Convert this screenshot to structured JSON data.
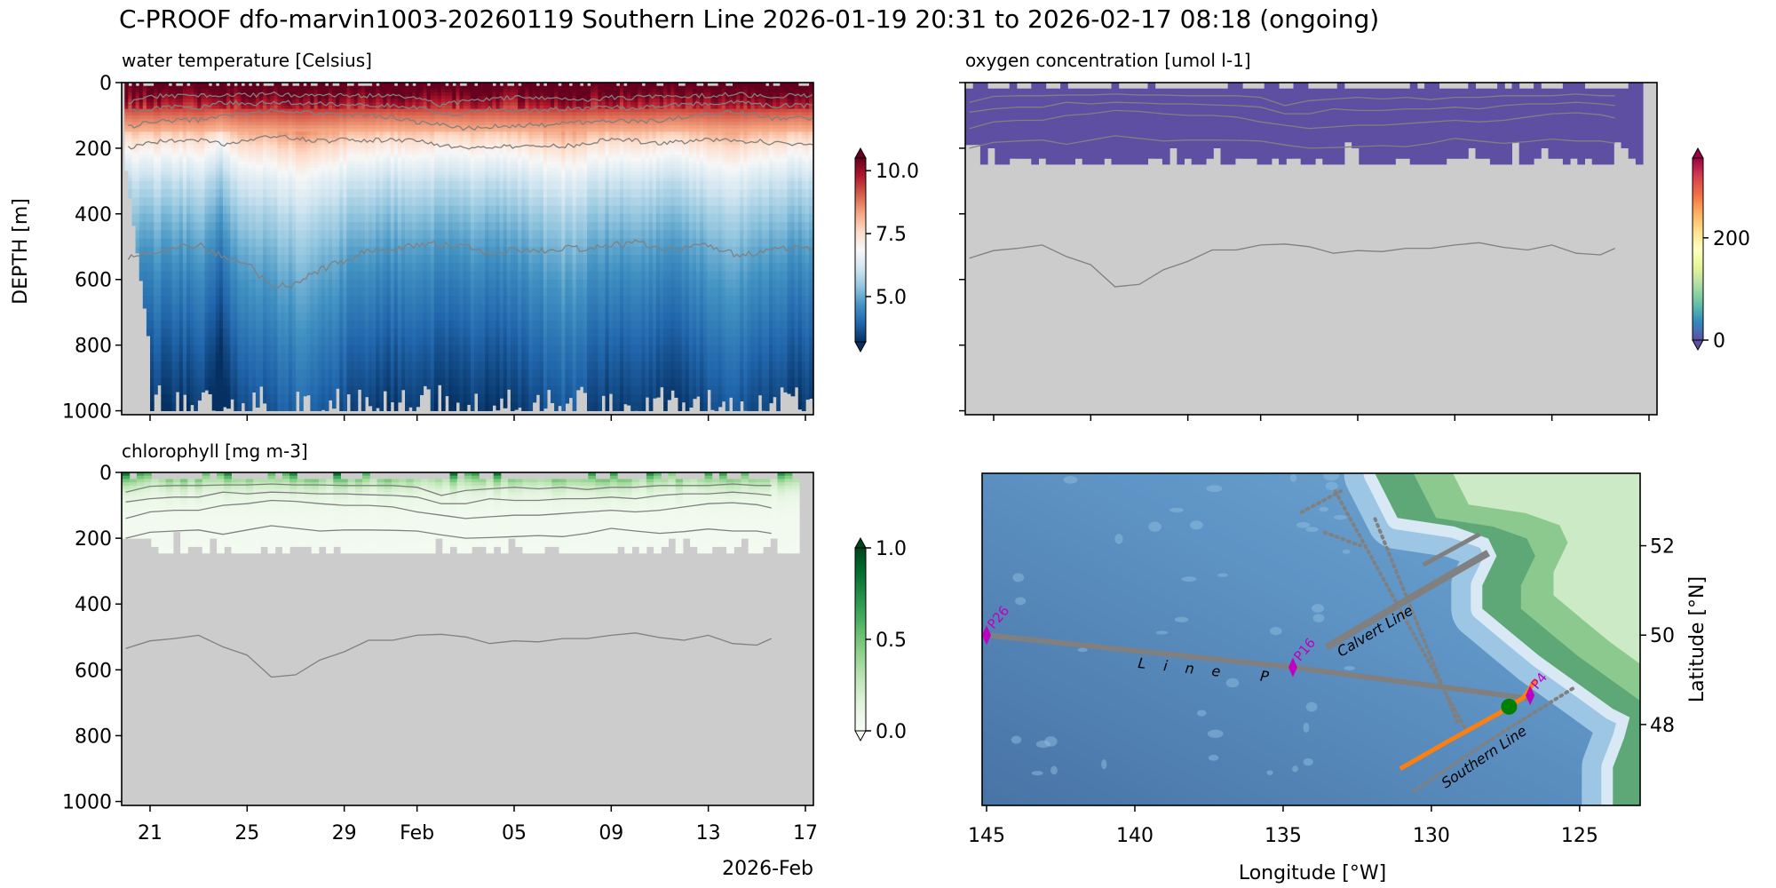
{
  "figure": {
    "title": "C-PROOF dfo-marvin1003-20260119   Southern Line   2026-01-19 20:31 to 2026-02-17 08:18 (ongoing)"
  },
  "colors": {
    "missing": "#cccccc",
    "contour": "#808080",
    "track": "#808080",
    "station": "#bf00bf",
    "glider_track": "#ff7f0e",
    "glider_position": "#008000",
    "oxygen_fill": "#5e4fa2"
  },
  "contours": {
    "day_of_jan_2026": [
      20,
      21,
      22,
      23,
      24,
      25,
      26,
      27,
      28,
      29,
      30,
      31,
      32,
      33,
      34,
      35,
      36,
      37,
      38,
      39,
      40,
      41,
      42,
      43,
      44,
      45,
      46,
      46.6
    ],
    "depth_m": [
      [
        60,
        42,
        40,
        40,
        38,
        38,
        35,
        38,
        38,
        40,
        40,
        40,
        45,
        70,
        55,
        50,
        45,
        50,
        45,
        52,
        45,
        45,
        40,
        40,
        40,
        35,
        40,
        40
      ],
      [
        90,
        80,
        75,
        75,
        60,
        65,
        60,
        62,
        65,
        65,
        68,
        70,
        75,
        95,
        95,
        80,
        85,
        85,
        80,
        80,
        75,
        80,
        70,
        65,
        65,
        60,
        65,
        70
      ],
      [
        140,
        120,
        115,
        115,
        100,
        95,
        85,
        88,
        95,
        100,
        100,
        105,
        120,
        130,
        140,
        135,
        130,
        130,
        125,
        120,
        115,
        120,
        115,
        105,
        95,
        92,
        98,
        108
      ],
      [
        200,
        182,
        178,
        175,
        188,
        175,
        162,
        170,
        178,
        175,
        175,
        176,
        178,
        190,
        200,
        198,
        195,
        192,
        195,
        185,
        170,
        178,
        185,
        180,
        172,
        178,
        178,
        185
      ],
      [
        535,
        512,
        505,
        495,
        530,
        555,
        622,
        615,
        570,
        545,
        510,
        510,
        495,
        492,
        500,
        520,
        512,
        515,
        505,
        505,
        495,
        488,
        502,
        510,
        495,
        520,
        525,
        505
      ]
    ]
  },
  "chart_data": [
    {
      "panel": "temperature",
      "type": "heatmap",
      "title": "water temperature [Celsius]",
      "ylabel": "DEPTH [m]",
      "ylim": [
        1012,
        0
      ],
      "yticks": [
        0,
        200,
        400,
        600,
        800,
        1000
      ],
      "ytick_labels": [
        "0",
        "200",
        "400",
        "600",
        "800",
        "1000"
      ],
      "xlim_day_of_jan_2026": [
        19.83,
        48.33
      ],
      "xticks": [
        21,
        25,
        29,
        32,
        36,
        40,
        44,
        48
      ],
      "mean_profile": {
        "depth": [
          0,
          30,
          60,
          100,
          150,
          200,
          250,
          300,
          400,
          500,
          600,
          800,
          1000
        ],
        "value": [
          10.8,
          10.4,
          9.8,
          9.0,
          8.2,
          7.4,
          6.8,
          6.3,
          5.6,
          5.1,
          4.7,
          4.1,
          3.6
        ]
      },
      "colorbar": {
        "cmap": "RdBu_r",
        "vmin": 3.2,
        "vmax": 10.5,
        "ticks": [
          5,
          7.5,
          10
        ],
        "tick_labels": [
          "5.0",
          "7.5",
          "10.0"
        ],
        "extend": "both"
      }
    },
    {
      "panel": "oxygen",
      "type": "heatmap",
      "title": "oxygen concentration [umol l-1]",
      "ylim": [
        1012,
        0
      ],
      "yticks": [
        0,
        200,
        400,
        600,
        800,
        1000
      ],
      "xlim_day_of_jan_2026": [
        19.83,
        48.33
      ],
      "xticks": [
        21,
        25,
        29,
        32,
        36,
        40,
        44,
        48
      ],
      "data_depth_range": [
        0,
        250
      ],
      "data_end_day": 47.6,
      "typical_value": 0,
      "colorbar": {
        "cmap": "Spectral_r",
        "vmin": 0,
        "vmax": 356,
        "ticks": [
          0,
          200
        ],
        "tick_labels": [
          "0",
          "200"
        ],
        "extend": "both"
      }
    },
    {
      "panel": "chlorophyll",
      "type": "heatmap",
      "title": "chlorophyll [mg m-3]",
      "ylim": [
        1012,
        0
      ],
      "yticks": [
        0,
        200,
        400,
        600,
        800,
        1000
      ],
      "ytick_labels": [
        "0",
        "200",
        "400",
        "600",
        "800",
        "1000"
      ],
      "xlim_day_of_jan_2026": [
        19.83,
        48.33
      ],
      "xticks": [
        21,
        25,
        29,
        32,
        36,
        40,
        44,
        48
      ],
      "xtick_labels": [
        "21",
        "25",
        "29",
        "Feb",
        "05",
        "09",
        "13",
        "17"
      ],
      "xlabel": "2026-Feb",
      "data_depth_range": [
        0,
        245
      ],
      "data_end_day": 47.6,
      "surface_value_range": [
        0.45,
        0.95
      ],
      "decay_depth_m": 35,
      "colorbar": {
        "cmap": "Greens",
        "vmin": 0,
        "vmax": 1,
        "ticks": [
          0,
          0.5,
          1
        ],
        "tick_labels": [
          "0.0",
          "0.5",
          "1.0"
        ],
        "extend": "both"
      }
    },
    {
      "panel": "map",
      "type": "map",
      "xlabel": "Longitude [°W]",
      "ylabel": "Latitude [°N]",
      "xlim_deg_w": [
        145.15,
        122.96
      ],
      "ylim_deg_n": [
        46.19,
        53.62
      ],
      "xticks": [
        145,
        140,
        135,
        130,
        125
      ],
      "xtick_labels": [
        "145",
        "140",
        "135",
        "130",
        "125"
      ],
      "yticks": [
        48,
        50,
        52
      ],
      "ytick_labels": [
        "48",
        "50",
        "52"
      ],
      "stations": [
        {
          "name": "P26",
          "lon": 145.0,
          "lat": 50.0
        },
        {
          "name": "P16",
          "lon": 134.67,
          "lat": 49.28
        },
        {
          "name": "P4",
          "lon": 126.67,
          "lat": 48.65
        }
      ],
      "line_labels": {
        "line_p": "Line P",
        "calvert": "Calvert Line",
        "southern": "Southern Line"
      },
      "tracks": {
        "line_p": [
          [
            145.0,
            50.0
          ],
          [
            134.67,
            49.28
          ],
          [
            126.67,
            48.58
          ]
        ],
        "calvert": [
          [
            133.53,
            49.73
          ],
          [
            130.28,
            51.0
          ],
          [
            128.08,
            51.84
          ]
        ],
        "calvert_branch": [
          [
            130.28,
            51.57
          ],
          [
            128.37,
            52.26
          ]
        ],
        "survey_dotted": [
          [
            [
              134.38,
              52.75
            ],
            [
              133.05,
              53.22
            ]
          ],
          [
            [
              133.24,
              53.22
            ],
            [
              128.85,
              47.9
            ]
          ],
          [
            [
              133.6,
              52.3
            ],
            [
              132.4,
              52.0
            ]
          ],
          [
            [
              131.9,
              52.6
            ],
            [
              129.1,
              48.0
            ]
          ]
        ],
        "southern_line": [
          [
            130.57,
            46.52
          ],
          [
            127.9,
            47.7
          ],
          [
            125.22,
            48.81
          ]
        ],
        "glider_track": [
          [
            131.05,
            47.01
          ],
          [
            129.5,
            47.6
          ],
          [
            127.7,
            48.26
          ],
          [
            126.9,
            48.6
          ],
          [
            126.47,
            49.01
          ]
        ]
      },
      "glider_position": {
        "lon": 127.38,
        "lat": 48.4
      },
      "coastline": [
        [
          131.9,
          53.7
        ],
        [
          131.9,
          53.61
        ],
        [
          131.14,
          52.62
        ],
        [
          129.23,
          52.43
        ],
        [
          128.08,
          52.16
        ],
        [
          127.8,
          51.77
        ],
        [
          128.28,
          51.11
        ],
        [
          128.28,
          50.59
        ],
        [
          127.32,
          50.06
        ],
        [
          126.37,
          49.54
        ],
        [
          125.41,
          49.08
        ],
        [
          124.84,
          48.81
        ],
        [
          123.88,
          48.35
        ],
        [
          123.31,
          48.16
        ],
        [
          123.5,
          47.7
        ],
        [
          123.88,
          47.04
        ],
        [
          123.88,
          46.1
        ],
        [
          122.5,
          46.1
        ],
        [
          122.5,
          53.7
        ]
      ]
    }
  ]
}
